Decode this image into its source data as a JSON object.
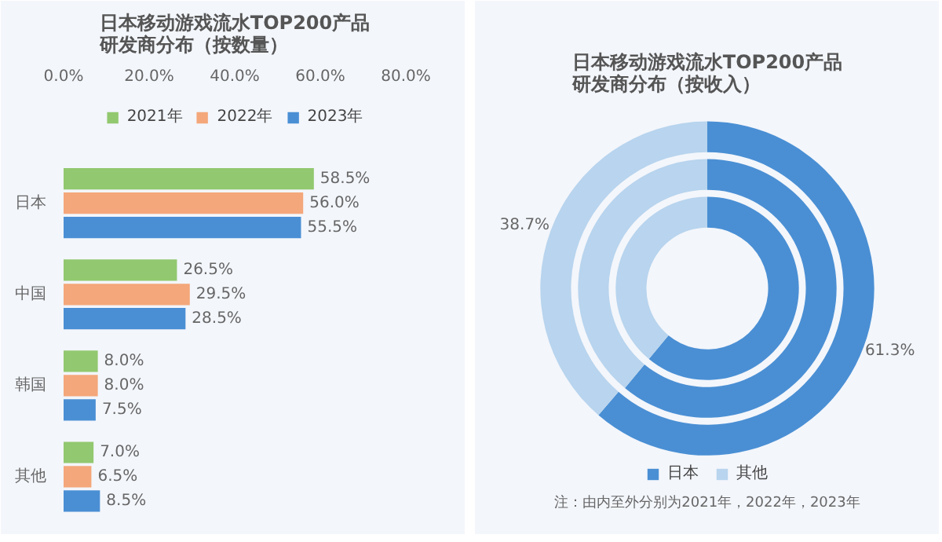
{
  "chart_data": [
    {
      "type": "bar",
      "orientation": "horizontal",
      "title": "日本移动游戏流水TOP200产品研发商分布（按数量）",
      "categories": [
        "日本",
        "中国",
        "韩国",
        "其他"
      ],
      "xlim": [
        0,
        80
      ],
      "xticks": [
        {
          "value": 0,
          "label": "0.0%"
        },
        {
          "value": 20,
          "label": "20.0%"
        },
        {
          "value": 40,
          "label": "40.0%"
        },
        {
          "value": 60,
          "label": "60.0%"
        },
        {
          "value": 80,
          "label": "80.0%"
        }
      ],
      "legend": "top",
      "grid": false,
      "series": [
        {
          "name": "2021年",
          "color": "#92c86f",
          "values": [
            58.5,
            26.5,
            8.0,
            7.0
          ],
          "value_labels": [
            "58.5%",
            "26.5%",
            "8.0%",
            "7.0%"
          ]
        },
        {
          "name": "2022年",
          "color": "#f4a77a",
          "values": [
            56.0,
            29.5,
            8.0,
            6.5
          ],
          "value_labels": [
            "56.0%",
            "29.5%",
            "8.0%",
            "6.5%"
          ]
        },
        {
          "name": "2023年",
          "color": "#4a8fd4",
          "values": [
            55.5,
            28.5,
            7.5,
            8.5
          ],
          "value_labels": [
            "55.5%",
            "28.5%",
            "7.5%",
            "8.5%"
          ]
        }
      ]
    },
    {
      "type": "donut",
      "title": "日本移动游戏流水TOP200产品研发商分布（按收入）",
      "categories": [
        "日本",
        "其他"
      ],
      "colors": [
        "#4a8fd4",
        "#b8d4ee"
      ],
      "legend": "bottom",
      "annotations": [
        "注：由内至外分别为2021年，2022年，2023年"
      ],
      "series": [
        {
          "values": [
            61,
            39
          ]
        },
        {
          "values": [
            61,
            39
          ]
        },
        {
          "values": [
            61.3,
            38.7
          ],
          "value_labels": [
            "61.3%",
            "38.7%"
          ]
        }
      ]
    }
  ]
}
